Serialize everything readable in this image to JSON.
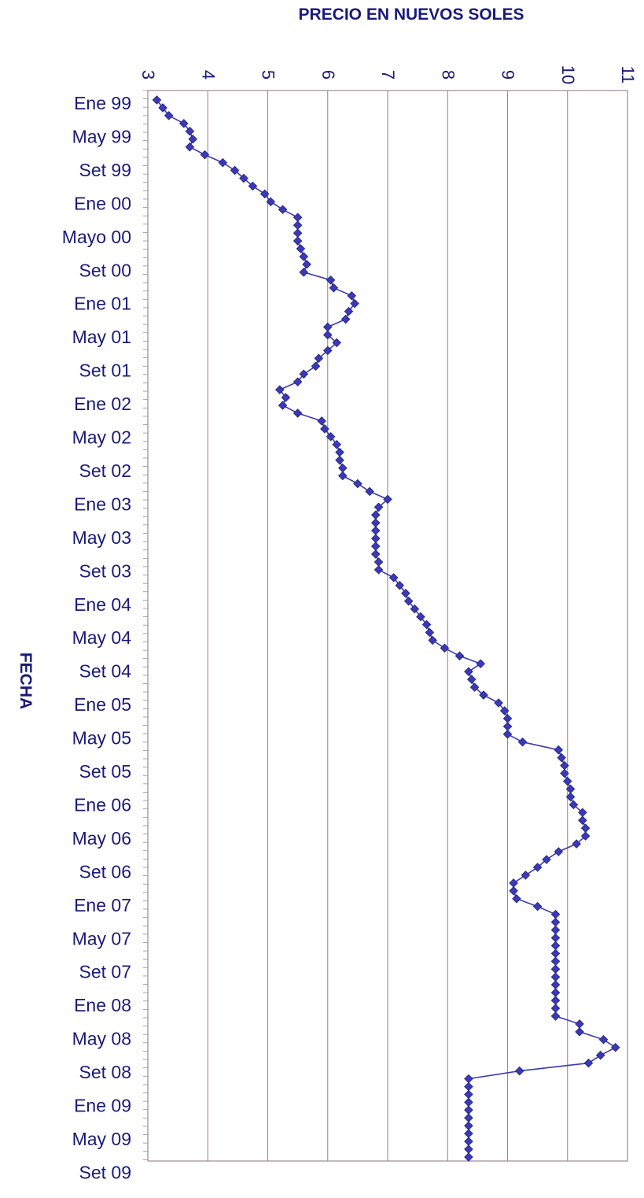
{
  "chart_data": {
    "type": "line",
    "orientation": "rotated-90-vertical-time-axis",
    "title": "PRECIO EN NUEVOS SOLES",
    "ylabel": "FECHA",
    "xlim": [
      3,
      11
    ],
    "value_ticks": [
      "3",
      "4",
      "5",
      "6",
      "7",
      "8",
      "9",
      "10",
      "11"
    ],
    "category_labels": [
      "Ene 99",
      "May 99",
      "Set 99",
      "Ene 00",
      "Mayo 00",
      "Set 00",
      "Ene 01",
      "May 01",
      "Set 01",
      "Ene 02",
      "May 02",
      "Set 02",
      "Ene 03",
      "May 03",
      "Set 03",
      "Ene 04",
      "May 04",
      "Set 04",
      "Ene 05",
      "May 05",
      "Set 05",
      "Ene 06",
      "May 06",
      "Set 06",
      "Ene 07",
      "May 07",
      "Set 07",
      "Ene 08",
      "May 08",
      "Set 08",
      "Ene 09",
      "May 09",
      "Set 09"
    ],
    "grid": true,
    "legend": "none",
    "marker": "diamond",
    "colors": {
      "series": "#3a3ab8",
      "marker_edge": "#22227a",
      "grid": "#9a8a96",
      "text": "#1a1a7a",
      "plot_bg": "#ffffff"
    },
    "series": [
      {
        "values": [
          3.15,
          3.25,
          3.35,
          3.6,
          3.7,
          3.75,
          3.7,
          3.95,
          4.25,
          4.45,
          4.6,
          4.75,
          4.95,
          5.05,
          5.25,
          5.5,
          5.5,
          5.5,
          5.5,
          5.55,
          5.6,
          5.65,
          5.6,
          6.05,
          6.1,
          6.4,
          6.45,
          6.35,
          6.3,
          6.0,
          6.0,
          6.15,
          6.0,
          5.85,
          5.8,
          5.6,
          5.5,
          5.2,
          5.3,
          5.25,
          5.5,
          5.9,
          5.95,
          6.05,
          6.15,
          6.2,
          6.2,
          6.25,
          6.25,
          6.5,
          6.7,
          7.0,
          6.85,
          6.8,
          6.8,
          6.8,
          6.8,
          6.8,
          6.8,
          6.85,
          6.85,
          7.1,
          7.2,
          7.3,
          7.35,
          7.45,
          7.55,
          7.65,
          7.7,
          7.75,
          7.95,
          8.2,
          8.55,
          8.35,
          8.4,
          8.45,
          8.6,
          8.85,
          8.95,
          9.0,
          9.0,
          9.0,
          9.25,
          9.85,
          9.9,
          9.95,
          9.95,
          10.0,
          10.05,
          10.05,
          10.1,
          10.25,
          10.25,
          10.3,
          10.3,
          10.15,
          9.85,
          9.65,
          9.5,
          9.3,
          9.1,
          9.1,
          9.15,
          9.5,
          9.8,
          9.8,
          9.8,
          9.8,
          9.8,
          9.8,
          9.8,
          9.8,
          9.8,
          9.8,
          9.8,
          9.8,
          9.8,
          9.8,
          10.2,
          10.2,
          10.6,
          10.8,
          10.55,
          10.35,
          9.2,
          8.35,
          8.35,
          8.35,
          8.35,
          8.35,
          8.35,
          8.35,
          8.35,
          8.35,
          8.35,
          8.35
        ]
      }
    ]
  }
}
